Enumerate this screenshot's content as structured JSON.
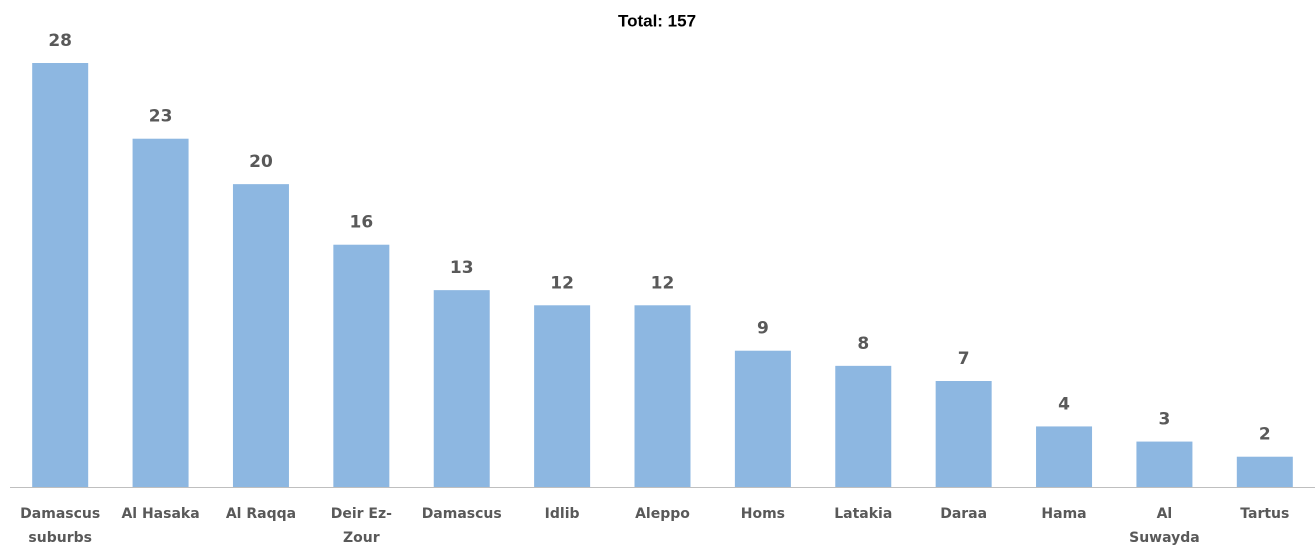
{
  "chart_data": {
    "type": "bar",
    "title": "Total: 157",
    "categories": [
      "Damascus\nsuburbs",
      "Al Hasaka",
      "Al Raqqa",
      "Deir Ez-\nZour",
      "Damascus",
      "Idlib",
      "Aleppo",
      "Homs",
      "Latakia",
      "Daraa",
      "Hama",
      "Al\nSuwayda",
      "Tartus"
    ],
    "values": [
      28,
      23,
      20,
      16,
      13,
      12,
      12,
      9,
      8,
      7,
      4,
      3,
      2
    ],
    "color": "#8db7e1"
  }
}
